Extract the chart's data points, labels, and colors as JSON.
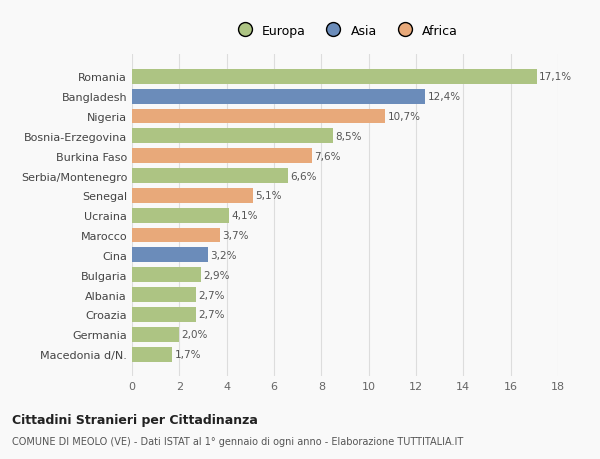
{
  "categories": [
    "Macedonia d/N.",
    "Germania",
    "Croazia",
    "Albania",
    "Bulgaria",
    "Cina",
    "Marocco",
    "Ucraina",
    "Senegal",
    "Serbia/Montenegro",
    "Burkina Faso",
    "Bosnia-Erzegovina",
    "Nigeria",
    "Bangladesh",
    "Romania"
  ],
  "values": [
    1.7,
    2.0,
    2.7,
    2.7,
    2.9,
    3.2,
    3.7,
    4.1,
    5.1,
    6.6,
    7.6,
    8.5,
    10.7,
    12.4,
    17.1
  ],
  "labels": [
    "1,7%",
    "2,0%",
    "2,7%",
    "2,7%",
    "2,9%",
    "3,2%",
    "3,7%",
    "4,1%",
    "5,1%",
    "6,6%",
    "7,6%",
    "8,5%",
    "10,7%",
    "12,4%",
    "17,1%"
  ],
  "colors": [
    "#adc483",
    "#adc483",
    "#adc483",
    "#adc483",
    "#adc483",
    "#6b8cba",
    "#e8a97a",
    "#adc483",
    "#e8a97a",
    "#adc483",
    "#e8a97a",
    "#adc483",
    "#e8a97a",
    "#6b8cba",
    "#adc483"
  ],
  "legend_labels": [
    "Europa",
    "Asia",
    "Africa"
  ],
  "legend_colors": [
    "#adc483",
    "#6b8cba",
    "#e8a97a"
  ],
  "xlim": [
    0,
    18
  ],
  "xticks": [
    0,
    2,
    4,
    6,
    8,
    10,
    12,
    14,
    16,
    18
  ],
  "title_main": "Cittadini Stranieri per Cittadinanza",
  "title_sub": "COMUNE DI MEOLO (VE) - Dati ISTAT al 1° gennaio di ogni anno - Elaborazione TUTTITALIA.IT",
  "background_color": "#f9f9f9",
  "grid_color": "#dddddd",
  "figsize": [
    6.0,
    4.6
  ],
  "dpi": 100
}
